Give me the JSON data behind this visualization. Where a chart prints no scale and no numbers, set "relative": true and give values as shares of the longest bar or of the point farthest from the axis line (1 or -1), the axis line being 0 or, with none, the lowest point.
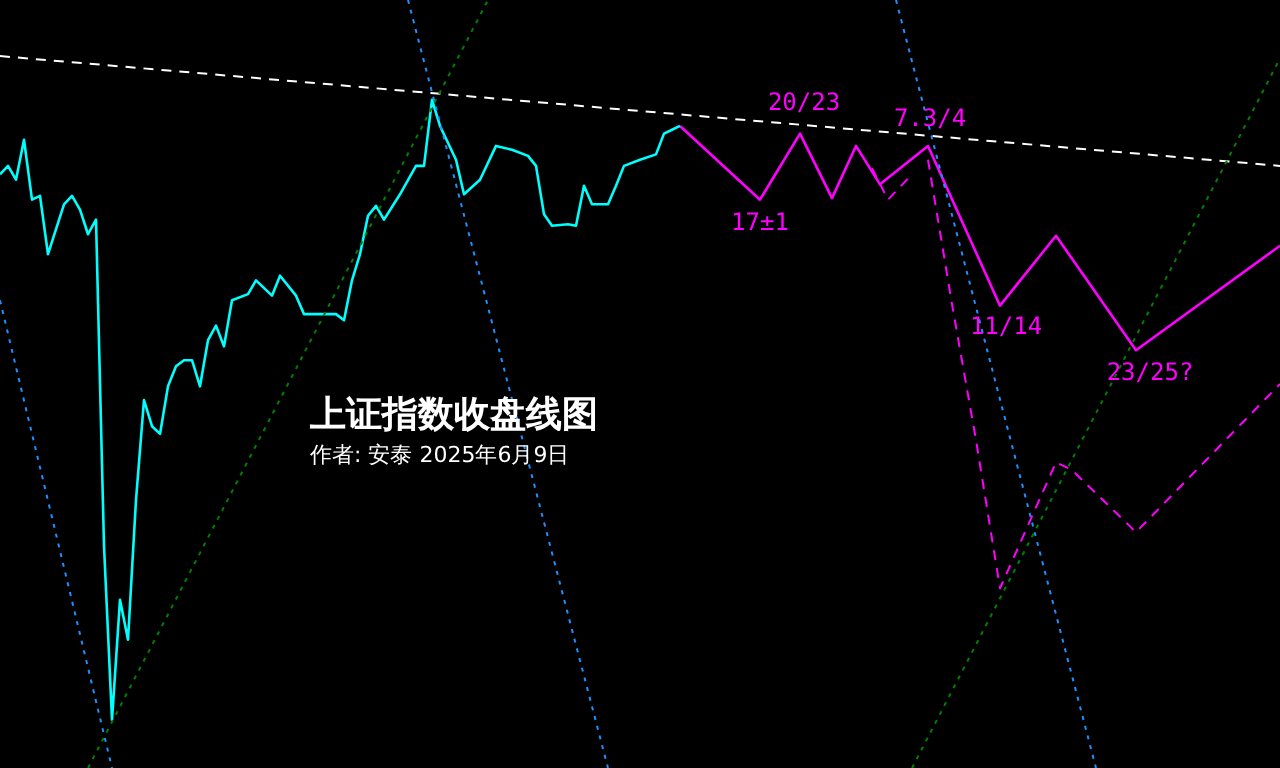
{
  "chart_data": {
    "type": "line",
    "title": "上证指数收盘线图",
    "subtitle": "作者: 安泰 2025年6月9日",
    "relative": true,
    "marker": "none",
    "annotations": [
      "20/23",
      "7.3/4",
      "17±1",
      "11/14",
      "23/25?"
    ],
    "categories": [
      null,
      null,
      null,
      null,
      null,
      null,
      null,
      null,
      null,
      null,
      null,
      null,
      null,
      null,
      null,
      null,
      null,
      null,
      null,
      null,
      null,
      null,
      null,
      null,
      null,
      null,
      null,
      null,
      null,
      null,
      null,
      null,
      null,
      null,
      null,
      null,
      null,
      null,
      null,
      null,
      null,
      null,
      null,
      null,
      null,
      null,
      null,
      null,
      null,
      null,
      null,
      null,
      null,
      null,
      null,
      null,
      null,
      null,
      null,
      null,
      null,
      null,
      null,
      null,
      null,
      null,
      null,
      null,
      null,
      null,
      null,
      null,
      null,
      null,
      null,
      null,
      null,
      null,
      null,
      null,
      null,
      null,
      null,
      null,
      null,
      null,
      null,
      null,
      null,
      null,
      null,
      null,
      null,
      null,
      null,
      null,
      null,
      null,
      null,
      null,
      null,
      null,
      null,
      null,
      null,
      null,
      null,
      null,
      null,
      null,
      null,
      null,
      null,
      null,
      null,
      null,
      null,
      null,
      null,
      null,
      null,
      null,
      null,
      null,
      null,
      null,
      null,
      null,
      null,
      null,
      null,
      null,
      null,
      null,
      null,
      null,
      null,
      null,
      null,
      null,
      null,
      null,
      null,
      null,
      null,
      null,
      null,
      null,
      null,
      null,
      null,
      null,
      null,
      null,
      null,
      null,
      null,
      null,
      null,
      null,
      null
    ],
    "series": [
      {
        "color": "#1e90ff",
        "line_style": "dotted",
        "values": [
          0.609,
          null,
          null,
          null,
          null,
          null,
          null,
          null,
          null,
          null,
          null,
          null,
          null,
          null,
          0,
          null,
          null,
          null,
          null,
          null,
          null,
          null,
          null,
          null,
          null,
          null,
          null,
          null,
          null,
          null,
          null,
          null,
          null,
          null,
          null,
          null,
          null,
          null,
          null,
          null,
          null,
          null,
          null,
          null,
          null,
          null,
          null,
          null,
          null,
          null,
          null,
          null,
          null,
          null,
          null,
          null,
          null,
          null,
          null,
          null,
          null,
          null,
          null,
          null,
          null,
          null,
          null,
          null,
          null,
          null,
          null,
          null,
          null,
          null,
          null,
          null,
          null,
          null,
          null,
          null,
          null,
          null,
          null,
          null,
          null,
          null,
          null,
          null,
          null,
          null,
          null,
          null,
          null,
          null,
          null,
          null,
          null,
          null,
          null,
          null,
          null,
          null,
          null,
          null,
          null,
          null,
          null,
          null,
          null,
          null,
          null,
          null,
          null,
          null,
          null,
          null,
          null,
          null,
          null,
          null,
          null,
          null,
          null,
          null,
          null,
          null,
          null,
          null,
          null,
          null,
          null,
          null,
          null,
          null,
          null,
          null,
          null,
          null,
          null,
          null,
          null,
          null,
          null,
          null,
          null,
          null,
          null,
          null,
          null,
          null,
          null,
          null,
          null,
          null,
          null,
          null,
          null,
          null,
          null,
          null,
          null
        ]
      },
      {
        "color": "#1e90ff",
        "line_style": "dotted",
        "values": [
          null,
          null,
          null,
          null,
          null,
          null,
          null,
          null,
          null,
          null,
          null,
          null,
          null,
          null,
          null,
          null,
          null,
          null,
          null,
          null,
          null,
          null,
          null,
          null,
          null,
          null,
          null,
          null,
          null,
          null,
          null,
          null,
          null,
          null,
          null,
          null,
          null,
          null,
          null,
          null,
          null,
          null,
          null,
          null,
          null,
          null,
          null,
          null,
          null,
          null,
          null,
          1,
          null,
          null,
          null,
          null,
          null,
          null,
          null,
          null,
          null,
          null,
          null,
          null,
          null,
          null,
          null,
          null,
          null,
          null,
          null,
          null,
          null,
          null,
          null,
          null,
          0,
          null,
          null,
          null,
          null,
          null,
          null,
          null,
          null,
          null,
          null,
          null,
          null,
          null,
          null,
          null,
          null,
          null,
          null,
          null,
          null,
          null,
          null,
          null,
          null,
          null,
          null,
          null,
          null,
          null,
          null,
          null,
          null,
          null,
          null,
          null,
          null,
          null,
          null,
          null,
          null,
          null,
          null,
          null,
          null,
          null,
          null,
          null,
          null,
          null,
          null,
          null,
          null,
          null,
          null,
          null,
          null,
          null,
          null,
          null,
          null,
          null,
          null,
          null,
          null,
          null,
          null,
          null,
          null,
          null,
          null,
          null,
          null,
          null,
          null,
          null,
          null,
          null,
          null,
          null,
          null,
          null,
          null,
          null,
          null
        ]
      },
      {
        "color": "#1e90ff",
        "line_style": "dotted",
        "values": [
          null,
          null,
          null,
          null,
          null,
          null,
          null,
          null,
          null,
          null,
          null,
          null,
          null,
          null,
          null,
          null,
          null,
          null,
          null,
          null,
          null,
          null,
          null,
          null,
          null,
          null,
          null,
          null,
          null,
          null,
          null,
          null,
          null,
          null,
          null,
          null,
          null,
          null,
          null,
          null,
          null,
          null,
          null,
          null,
          null,
          null,
          null,
          null,
          null,
          null,
          null,
          null,
          null,
          null,
          null,
          null,
          null,
          null,
          null,
          null,
          null,
          null,
          null,
          null,
          null,
          null,
          null,
          null,
          null,
          null,
          null,
          null,
          null,
          null,
          null,
          null,
          null,
          null,
          null,
          null,
          null,
          null,
          null,
          null,
          null,
          null,
          null,
          null,
          null,
          null,
          null,
          null,
          null,
          null,
          null,
          null,
          null,
          null,
          null,
          null,
          null,
          null,
          null,
          null,
          null,
          null,
          null,
          null,
          null,
          null,
          null,
          null,
          1,
          null,
          null,
          null,
          null,
          null,
          null,
          null,
          null,
          null,
          null,
          null,
          null,
          null,
          null,
          null,
          null,
          null,
          null,
          null,
          null,
          null,
          null,
          null,
          null,
          0,
          null,
          null,
          null,
          null,
          null,
          null,
          null,
          null,
          null,
          null,
          null,
          null,
          null,
          null,
          null,
          null,
          null,
          null,
          null,
          null,
          null,
          null,
          null
        ]
      },
      {
        "color": "#008000",
        "line_style": "dotted",
        "values": [
          null,
          null,
          null,
          null,
          null,
          null,
          null,
          null,
          null,
          null,
          null,
          0,
          null,
          null,
          null,
          null,
          null,
          null,
          null,
          null,
          null,
          null,
          null,
          null,
          null,
          null,
          null,
          null,
          null,
          null,
          null,
          null,
          null,
          null,
          null,
          null,
          null,
          null,
          null,
          null,
          null,
          null,
          null,
          null,
          null,
          null,
          null,
          null,
          null,
          null,
          null,
          null,
          null,
          null,
          null,
          null,
          null,
          null,
          null,
          null,
          null,
          1,
          null,
          null,
          null,
          null,
          null,
          null,
          null,
          null,
          null,
          null,
          null,
          null,
          null,
          null,
          null,
          null,
          null,
          null,
          null,
          null,
          null,
          null,
          null,
          null,
          null,
          null,
          null,
          null,
          null,
          null,
          null,
          null,
          null,
          null,
          null,
          null,
          null,
          null,
          null,
          null,
          null,
          null,
          null,
          null,
          null,
          null,
          null,
          null,
          null,
          null,
          null,
          null,
          null,
          null,
          null,
          null,
          null,
          null,
          null,
          null,
          null,
          null,
          null,
          null,
          null,
          null,
          null,
          null,
          null,
          null,
          null,
          null,
          null,
          null,
          null,
          null,
          null,
          null,
          null,
          null,
          null,
          null,
          null,
          null,
          null,
          null,
          null,
          null,
          null,
          null,
          null,
          null,
          null,
          null,
          null,
          null,
          null,
          null,
          null
        ]
      },
      {
        "color": "#008000",
        "line_style": "dotted",
        "values": [
          null,
          null,
          null,
          null,
          null,
          null,
          null,
          null,
          null,
          null,
          null,
          null,
          null,
          null,
          null,
          null,
          null,
          null,
          null,
          null,
          null,
          null,
          null,
          null,
          null,
          null,
          null,
          null,
          null,
          null,
          null,
          null,
          null,
          null,
          null,
          null,
          null,
          null,
          null,
          null,
          null,
          null,
          null,
          null,
          null,
          null,
          null,
          null,
          null,
          null,
          null,
          null,
          null,
          null,
          null,
          null,
          null,
          null,
          null,
          null,
          null,
          null,
          null,
          null,
          null,
          null,
          null,
          null,
          null,
          null,
          null,
          null,
          null,
          null,
          null,
          null,
          null,
          null,
          null,
          null,
          null,
          null,
          null,
          null,
          null,
          null,
          null,
          null,
          null,
          null,
          null,
          null,
          null,
          null,
          null,
          null,
          null,
          null,
          null,
          null,
          null,
          null,
          null,
          null,
          null,
          null,
          null,
          null,
          null,
          null,
          null,
          null,
          null,
          null,
          0,
          null,
          null,
          null,
          null,
          null,
          null,
          null,
          null,
          null,
          null,
          null,
          null,
          null,
          null,
          null,
          null,
          null,
          null,
          null,
          null,
          null,
          null,
          null,
          null,
          null,
          null,
          null,
          null,
          null,
          null,
          null,
          null,
          null,
          null,
          null,
          null,
          null,
          null,
          null,
          null,
          null,
          null,
          null,
          null,
          null,
          0.924
        ]
      },
      {
        "color": "#ffffff",
        "line_style": "dashed",
        "values": [
          0.927,
          null,
          null,
          null,
          null,
          null,
          null,
          null,
          null,
          null,
          null,
          null,
          null,
          null,
          null,
          null,
          null,
          null,
          null,
          null,
          null,
          null,
          null,
          null,
          null,
          null,
          null,
          null,
          null,
          null,
          null,
          null,
          null,
          null,
          null,
          null,
          null,
          null,
          null,
          null,
          null,
          null,
          null,
          null,
          null,
          null,
          null,
          null,
          null,
          null,
          null,
          null,
          null,
          null,
          null,
          null,
          null,
          null,
          null,
          null,
          null,
          null,
          null,
          null,
          null,
          null,
          null,
          null,
          null,
          null,
          null,
          null,
          null,
          null,
          null,
          null,
          null,
          null,
          null,
          null,
          null,
          null,
          null,
          null,
          null,
          null,
          null,
          null,
          null,
          null,
          null,
          null,
          null,
          null,
          null,
          null,
          null,
          null,
          null,
          null,
          null,
          null,
          null,
          null,
          null,
          null,
          null,
          null,
          null,
          null,
          null,
          null,
          null,
          null,
          null,
          null,
          null,
          null,
          null,
          null,
          null,
          null,
          null,
          null,
          null,
          null,
          null,
          null,
          null,
          null,
          null,
          null,
          null,
          null,
          null,
          null,
          null,
          null,
          null,
          null,
          null,
          null,
          null,
          null,
          null,
          null,
          null,
          null,
          null,
          null,
          null,
          null,
          null,
          null,
          null,
          null,
          null,
          null,
          null,
          null,
          0.784
        ]
      },
      {
        "color": "#00ffff",
        "line_style": "solid",
        "values": [
          0.773,
          0.784,
          0.766,
          0.818,
          0.74,
          0.745,
          0.669,
          null,
          0.734,
          0.745,
          0.727,
          0.695,
          0.714,
          0.289,
          0.063,
          0.219,
          0.167,
          0.349,
          0.479,
          0.445,
          0.435,
          0.497,
          0.523,
          0.531,
          0.531,
          0.497,
          0.557,
          0.576,
          0.549,
          0.609,
          null,
          0.617,
          0.635,
          null,
          0.615,
          0.641,
          null,
          0.615,
          0.591,
          null,
          0.591,
          null,
          0.591,
          0.583,
          0.635,
          0.669,
          0.719,
          0.732,
          0.714,
          null,
          0.747,
          null,
          0.784,
          0.784,
          0.87,
          0.836,
          null,
          0.792,
          0.747,
          null,
          0.766,
          null,
          0.81,
          null,
          0.805,
          null,
          0.797,
          0.784,
          0.721,
          0.706,
          null,
          0.708,
          0.706,
          0.758,
          0.734,
          null,
          0.734,
          0.758,
          0.784,
          null,
          0.792,
          null,
          0.799,
          0.826,
          0.831,
          0.836,
          null,
          null,
          null,
          null,
          null,
          null,
          null,
          null,
          null,
          null,
          null,
          null,
          null,
          null,
          null,
          null,
          null,
          null,
          null,
          null,
          null,
          null,
          null,
          null,
          null,
          null,
          null,
          null,
          null,
          null,
          null,
          null,
          null,
          null,
          null,
          null,
          null,
          null,
          null,
          null,
          null,
          null,
          null,
          null,
          null,
          null,
          null,
          null,
          null,
          null,
          null,
          null,
          null,
          null,
          null,
          null,
          null,
          null,
          null,
          null,
          null,
          null,
          null,
          null,
          null,
          null,
          null,
          null,
          null,
          null,
          null,
          null,
          null,
          null,
          null
        ]
      },
      {
        "color": "#ff00ff",
        "line_style": "solid",
        "values": [
          null,
          null,
          null,
          null,
          null,
          null,
          null,
          null,
          null,
          null,
          null,
          null,
          null,
          null,
          null,
          null,
          null,
          null,
          null,
          null,
          null,
          null,
          null,
          null,
          null,
          null,
          null,
          null,
          null,
          null,
          null,
          null,
          null,
          null,
          null,
          null,
          null,
          null,
          null,
          null,
          null,
          null,
          null,
          null,
          null,
          null,
          null,
          null,
          null,
          null,
          null,
          null,
          null,
          null,
          null,
          null,
          null,
          null,
          null,
          null,
          null,
          null,
          null,
          null,
          null,
          null,
          null,
          null,
          null,
          null,
          null,
          null,
          null,
          null,
          null,
          null,
          null,
          null,
          null,
          null,
          null,
          null,
          null,
          null,
          null,
          0.836,
          null,
          null,
          null,
          null,
          null,
          null,
          null,
          null,
          null,
          0.74,
          null,
          null,
          null,
          null,
          0.826,
          null,
          null,
          null,
          0.742,
          null,
          null,
          0.81,
          null,
          null,
          0.76,
          null,
          null,
          null,
          null,
          null,
          0.81,
          null,
          null,
          null,
          null,
          null,
          null,
          null,
          null,
          0.602,
          null,
          null,
          null,
          null,
          null,
          null,
          0.693,
          null,
          null,
          null,
          null,
          null,
          null,
          null,
          null,
          null,
          0.544,
          null,
          null,
          null,
          null,
          null,
          null,
          null,
          null,
          null,
          null,
          null,
          null,
          null,
          null,
          null,
          null,
          null,
          0.68
        ]
      },
      {
        "color": "#ff00ff",
        "line_style": "dashed",
        "values": [
          null,
          null,
          null,
          null,
          null,
          null,
          null,
          null,
          null,
          null,
          null,
          null,
          null,
          null,
          null,
          null,
          null,
          null,
          null,
          null,
          null,
          null,
          null,
          null,
          null,
          null,
          null,
          null,
          null,
          null,
          null,
          null,
          null,
          null,
          null,
          null,
          null,
          null,
          null,
          null,
          null,
          null,
          null,
          null,
          null,
          null,
          null,
          null,
          null,
          null,
          null,
          null,
          null,
          null,
          null,
          null,
          null,
          null,
          null,
          null,
          null,
          null,
          null,
          null,
          null,
          null,
          null,
          null,
          null,
          null,
          null,
          null,
          null,
          null,
          null,
          null,
          null,
          null,
          null,
          null,
          null,
          null,
          null,
          null,
          null,
          null,
          null,
          null,
          null,
          null,
          null,
          null,
          null,
          null,
          null,
          null,
          null,
          null,
          null,
          null,
          null,
          null,
          null,
          null,
          null,
          null,
          null,
          null,
          null,
          null,
          null,
          null,
          null,
          null,
          null,
          null,
          0.792,
          null,
          null,
          0.604,
          null,
          null,
          0.427,
          null,
          null,
          0.234,
          null,
          null,
          null,
          null,
          null,
          null,
          0.398,
          null,
          0.388,
          null,
          null,
          null,
          null,
          null,
          null,
          null,
          0.307,
          null,
          null,
          null,
          null,
          null,
          null,
          null,
          null,
          null,
          null,
          null,
          null,
          null,
          null,
          null,
          null,
          null,
          0.5
        ]
      },
      {
        "color": "#ff00ff",
        "line_style": "dashed",
        "values": [
          null,
          null,
          null,
          null,
          null,
          null,
          null,
          null,
          null,
          null,
          null,
          null,
          null,
          null,
          null,
          null,
          null,
          null,
          null,
          null,
          null,
          null,
          null,
          null,
          null,
          null,
          null,
          null,
          null,
          null,
          null,
          null,
          null,
          null,
          null,
          null,
          null,
          null,
          null,
          null,
          null,
          null,
          null,
          null,
          null,
          null,
          null,
          null,
          null,
          null,
          null,
          null,
          null,
          null,
          null,
          null,
          null,
          null,
          null,
          null,
          null,
          null,
          null,
          null,
          null,
          null,
          null,
          null,
          null,
          null,
          null,
          null,
          null,
          null,
          null,
          null,
          null,
          null,
          null,
          null,
          null,
          null,
          null,
          null,
          null,
          null,
          null,
          null,
          null,
          null,
          null,
          null,
          null,
          null,
          null,
          null,
          null,
          null,
          null,
          null,
          null,
          null,
          null,
          null,
          null,
          null,
          null,
          null,
          null,
          0.781,
          null,
          0.74,
          null,
          null,
          0.773,
          null,
          null,
          null,
          null,
          null,
          null,
          null,
          null,
          null,
          null,
          null,
          null,
          null,
          null,
          null,
          null,
          null,
          null,
          null,
          null,
          null,
          null,
          null,
          null,
          null,
          null,
          null,
          null,
          null,
          null,
          null,
          null,
          null,
          null,
          null,
          null,
          null,
          null,
          null,
          null,
          null,
          null,
          null,
          null,
          null,
          null
        ]
      }
    ]
  }
}
